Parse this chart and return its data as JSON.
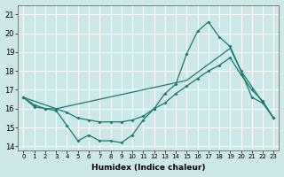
{
  "xlabel": "Humidex (Indice chaleur)",
  "background_color": "#cce8e8",
  "grid_color": "#ffffff",
  "line_color": "#1a7a6e",
  "xlim": [
    -0.5,
    23.5
  ],
  "ylim": [
    13.8,
    21.5
  ],
  "xticks": [
    0,
    1,
    2,
    3,
    4,
    5,
    6,
    7,
    8,
    9,
    10,
    11,
    12,
    13,
    14,
    15,
    16,
    17,
    18,
    19,
    20,
    21,
    22,
    23
  ],
  "yticks": [
    14,
    15,
    16,
    17,
    18,
    19,
    20,
    21
  ],
  "series1_x": [
    0,
    1,
    2,
    3,
    4,
    5,
    6,
    7,
    8,
    9,
    10,
    11,
    12,
    13,
    14,
    15,
    16,
    17,
    18,
    19,
    20,
    21,
    22,
    23
  ],
  "series1_y": [
    16.6,
    16.1,
    16.0,
    15.9,
    15.1,
    14.3,
    14.6,
    14.3,
    14.3,
    14.2,
    14.6,
    15.4,
    16.0,
    16.8,
    17.3,
    18.9,
    20.1,
    20.6,
    19.8,
    19.3,
    18.0,
    16.6,
    16.3,
    15.5
  ],
  "series2_x": [
    0,
    1,
    2,
    3,
    4,
    5,
    6,
    7,
    8,
    9,
    10,
    11,
    12,
    13,
    14,
    15,
    16,
    17,
    18,
    19,
    20,
    21,
    22,
    23
  ],
  "series2_y": [
    16.6,
    16.2,
    16.0,
    16.0,
    15.8,
    15.5,
    15.4,
    15.3,
    15.3,
    15.3,
    15.4,
    15.6,
    16.0,
    16.3,
    16.8,
    17.2,
    17.6,
    18.0,
    18.3,
    18.7,
    17.8,
    17.0,
    16.4,
    15.5
  ],
  "series3_x": [
    0,
    3,
    15,
    19,
    20,
    23
  ],
  "series3_y": [
    16.6,
    16.0,
    17.5,
    19.2,
    18.0,
    15.5
  ]
}
